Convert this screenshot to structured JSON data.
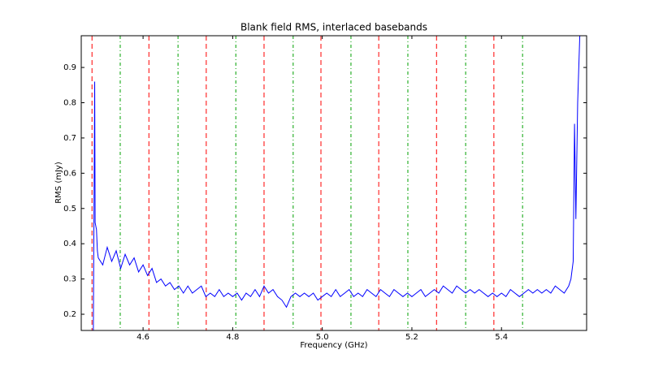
{
  "chart_data": {
    "type": "line",
    "title": "Blank field RMS, interlaced basebands",
    "xlabel": "Frequency (GHz)",
    "ylabel": "RMS (mJy)",
    "xlim": [
      4.462,
      5.59
    ],
    "ylim": [
      0.154,
      0.99
    ],
    "xticks": [
      4.6,
      4.8,
      {
        "value": 5,
        "label": "5.0"
      },
      5.2,
      5.4
    ],
    "yticks": [
      0.2,
      0.3,
      0.4,
      0.5,
      0.6,
      0.7,
      0.8,
      0.9
    ],
    "vlines": [
      {
        "color": "#ff0000",
        "dash": "dashed",
        "x": [
          4.486,
          4.613,
          4.741,
          4.87,
          4.997,
          5.126,
          5.255,
          5.383
        ]
      },
      {
        "color": "#00a000",
        "dash": "dashdot",
        "x": [
          4.549,
          4.678,
          4.807,
          4.935,
          5.064,
          5.191,
          5.32,
          5.447
        ]
      }
    ],
    "x": [
      4.489,
      4.492,
      4.493,
      4.496,
      4.498,
      4.5,
      4.51,
      4.52,
      4.53,
      4.54,
      4.55,
      4.56,
      4.57,
      4.58,
      4.59,
      4.6,
      4.61,
      4.62,
      4.63,
      4.64,
      4.65,
      4.66,
      4.67,
      4.68,
      4.69,
      4.7,
      4.71,
      4.72,
      4.73,
      4.74,
      4.75,
      4.76,
      4.77,
      4.78,
      4.79,
      4.8,
      4.81,
      4.82,
      4.83,
      4.84,
      4.85,
      4.86,
      4.87,
      4.88,
      4.89,
      4.9,
      4.91,
      4.92,
      4.93,
      4.94,
      4.95,
      4.96,
      4.97,
      4.98,
      4.99,
      5.0,
      5.01,
      5.02,
      5.03,
      5.04,
      5.05,
      5.06,
      5.07,
      5.08,
      5.09,
      5.1,
      5.11,
      5.12,
      5.13,
      5.14,
      5.15,
      5.16,
      5.17,
      5.18,
      5.19,
      5.2,
      5.21,
      5.22,
      5.23,
      5.24,
      5.25,
      5.26,
      5.27,
      5.28,
      5.29,
      5.3,
      5.31,
      5.32,
      5.33,
      5.34,
      5.35,
      5.36,
      5.37,
      5.38,
      5.39,
      5.4,
      5.41,
      5.42,
      5.43,
      5.44,
      5.45,
      5.46,
      5.47,
      5.48,
      5.49,
      5.5,
      5.51,
      5.52,
      5.53,
      5.54,
      5.55,
      5.555,
      5.56,
      5.563,
      5.566,
      5.57,
      5.575
    ],
    "series": [
      {
        "color": "#0000ff",
        "values": [
          0.15,
          0.86,
          0.46,
          0.44,
          0.38,
          0.36,
          0.34,
          0.39,
          0.35,
          0.38,
          0.33,
          0.37,
          0.34,
          0.36,
          0.32,
          0.34,
          0.31,
          0.33,
          0.29,
          0.3,
          0.28,
          0.29,
          0.27,
          0.28,
          0.26,
          0.28,
          0.26,
          0.27,
          0.28,
          0.25,
          0.26,
          0.25,
          0.27,
          0.25,
          0.26,
          0.25,
          0.26,
          0.24,
          0.26,
          0.25,
          0.27,
          0.25,
          0.28,
          0.26,
          0.27,
          0.25,
          0.24,
          0.22,
          0.25,
          0.26,
          0.25,
          0.26,
          0.25,
          0.26,
          0.24,
          0.25,
          0.26,
          0.25,
          0.27,
          0.25,
          0.26,
          0.27,
          0.25,
          0.26,
          0.25,
          0.27,
          0.26,
          0.25,
          0.27,
          0.26,
          0.25,
          0.27,
          0.26,
          0.25,
          0.26,
          0.25,
          0.26,
          0.27,
          0.25,
          0.26,
          0.27,
          0.26,
          0.28,
          0.27,
          0.26,
          0.28,
          0.27,
          0.26,
          0.27,
          0.26,
          0.27,
          0.26,
          0.25,
          0.26,
          0.25,
          0.26,
          0.25,
          0.27,
          0.26,
          0.25,
          0.26,
          0.27,
          0.26,
          0.27,
          0.26,
          0.27,
          0.26,
          0.28,
          0.27,
          0.26,
          0.28,
          0.3,
          0.35,
          0.74,
          0.47,
          0.8,
          1.0
        ]
      }
    ]
  }
}
